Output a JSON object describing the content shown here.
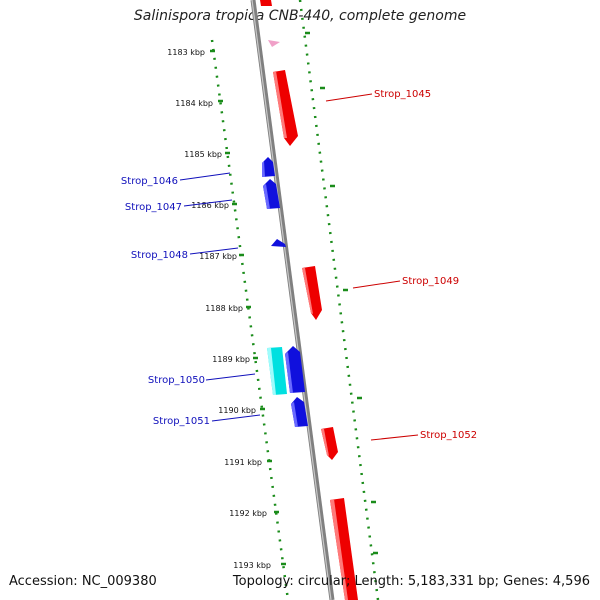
{
  "title": "Salinispora tropica CNB-440, complete genome",
  "accession": "Accession: NC_009380",
  "summary": "Topology: circular; Length: 5,183,331 bp; Genes: 4,596",
  "colors": {
    "forward_gene": "#ee0000",
    "reverse_gene": "#1010dd",
    "reverse_gene_alt": "#00e0e0",
    "other_feature": "#f0a0c8",
    "backbone": "#808080",
    "tick": "#1a8c1a",
    "forward_label": "#cc0000",
    "reverse_label": "#1010bb"
  },
  "ticks": [
    "1183 kbp",
    "1184 kbp",
    "1185 kbp",
    "1186 kbp",
    "1187 kbp",
    "1188 kbp",
    "1189 kbp",
    "1190 kbp",
    "1191 kbp",
    "1192 kbp",
    "1193 kbp"
  ],
  "gene_labels": {
    "strop_1045": "Strop_1045",
    "strop_1046": "Strop_1046",
    "strop_1047": "Strop_1047",
    "strop_1048": "Strop_1048",
    "strop_1049": "Strop_1049",
    "strop_1050": "Strop_1050",
    "strop_1051": "Strop_1051",
    "strop_1052": "Strop_1052"
  }
}
